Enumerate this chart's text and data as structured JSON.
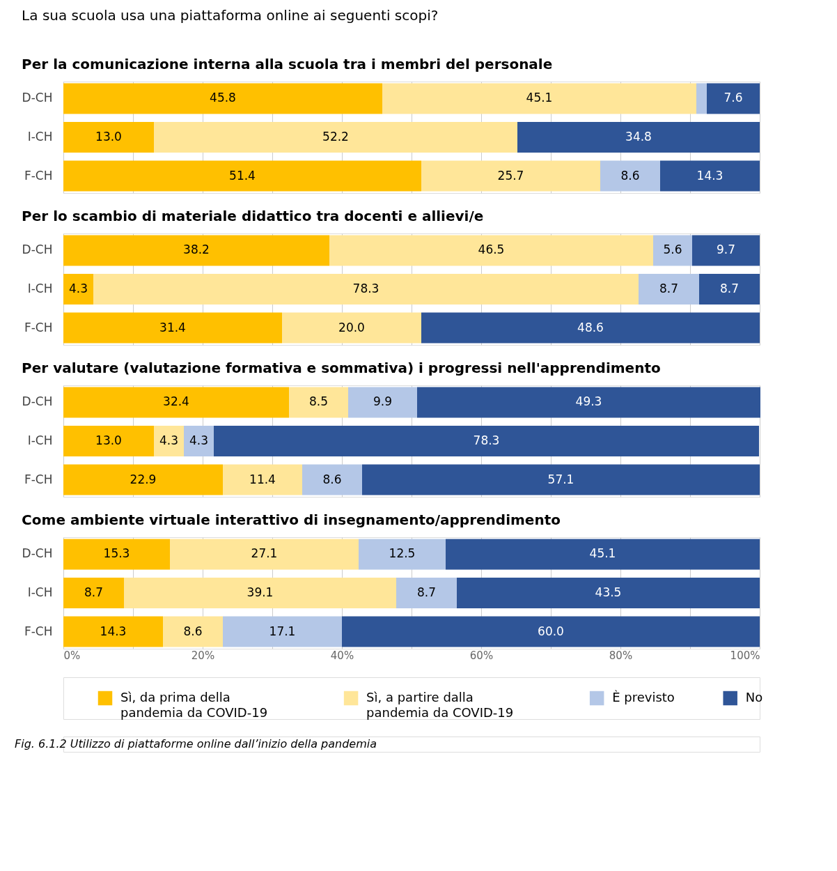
{
  "chart_data": [
    {
      "type": "bar",
      "orientation": "horizontal",
      "stacked": true,
      "title": "La sua scuola usa una piattaforma online ai seguenti scopi?",
      "subtitle": "Per la comunicazione interna alla scuola tra i membri del personale",
      "categories": [
        "D-CH",
        "I-CH",
        "F-CH"
      ],
      "xlim": [
        0,
        100
      ],
      "xticks": [
        0,
        10,
        20,
        30,
        40,
        50,
        60,
        70,
        80,
        90,
        100
      ],
      "grid": "x",
      "tick_labels": "y",
      "legend": "bottom",
      "series": [
        {
          "name": "Sì, da prima della pandemia da COVID-19",
          "color": "#ffc000",
          "values": [
            45.8,
            13.0,
            51.4
          ],
          "value_labels": [
            "45.8",
            "13.0",
            "51.4"
          ]
        },
        {
          "name": "Sì, a partire dalla pandemia da COVID-19",
          "color": "#ffe699",
          "values": [
            45.1,
            52.2,
            25.7
          ],
          "value_labels": [
            "45.1",
            "52.2",
            "25.7"
          ]
        },
        {
          "name": "È previsto",
          "color": "#b4c7e7",
          "values": [
            1.5,
            null,
            8.6
          ],
          "value_labels": [
            null,
            null,
            "8.6"
          ]
        },
        {
          "name": "No",
          "color": "#2f5597",
          "values": [
            7.6,
            34.8,
            14.3
          ],
          "value_labels": [
            "7.6",
            "34.8",
            "14.3"
          ]
        }
      ]
    },
    {
      "type": "bar",
      "orientation": "horizontal",
      "stacked": true,
      "title": "Per lo scambio di materiale didattico tra docenti e allievi/e",
      "categories": [
        "D-CH",
        "I-CH",
        "F-CH"
      ],
      "xlim": [
        0,
        100
      ],
      "xticks": [
        0,
        10,
        20,
        30,
        40,
        50,
        60,
        70,
        80,
        90,
        100
      ],
      "grid": "x",
      "tick_labels": "y",
      "series": [
        {
          "color": "#ffc000",
          "values": [
            38.2,
            4.3,
            31.4
          ],
          "value_labels": [
            "38.2",
            "4.3",
            "31.4"
          ]
        },
        {
          "color": "#ffe699",
          "values": [
            46.5,
            78.3,
            20.0
          ],
          "value_labels": [
            "46.5",
            "78.3",
            "20.0"
          ]
        },
        {
          "color": "#b4c7e7",
          "values": [
            5.6,
            8.7,
            null
          ],
          "value_labels": [
            "5.6",
            "8.7",
            null
          ]
        },
        {
          "color": "#2f5597",
          "values": [
            9.7,
            8.7,
            48.6
          ],
          "value_labels": [
            "9.7",
            "8.7",
            "48.6"
          ]
        }
      ]
    },
    {
      "type": "bar",
      "orientation": "horizontal",
      "stacked": true,
      "title": "Per valutare (valutazione formativa e sommativa) i progressi nell'apprendimento",
      "categories": [
        "D-CH",
        "I-CH",
        "F-CH"
      ],
      "xlim": [
        0,
        100
      ],
      "xticks": [
        0,
        10,
        20,
        30,
        40,
        50,
        60,
        70,
        80,
        90,
        100
      ],
      "grid": "x",
      "tick_labels": "y",
      "series": [
        {
          "color": "#ffc000",
          "values": [
            32.4,
            13.0,
            22.9
          ],
          "value_labels": [
            "32.4",
            "13.0",
            "22.9"
          ]
        },
        {
          "color": "#ffe699",
          "values": [
            8.5,
            4.3,
            11.4
          ],
          "value_labels": [
            "8.5",
            "4.3",
            "11.4"
          ]
        },
        {
          "color": "#b4c7e7",
          "values": [
            9.9,
            4.3,
            8.6
          ],
          "value_labels": [
            "9.9",
            "4.3",
            "8.6"
          ]
        },
        {
          "color": "#2f5597",
          "values": [
            49.3,
            78.3,
            57.1
          ],
          "value_labels": [
            "49.3",
            "78.3",
            "57.1"
          ]
        }
      ]
    },
    {
      "type": "bar",
      "orientation": "horizontal",
      "stacked": true,
      "title": "Come ambiente virtuale interattivo di insegnamento/apprendimento",
      "categories": [
        "D-CH",
        "I-CH",
        "F-CH"
      ],
      "xlim": [
        0,
        100
      ],
      "xticks": [
        {
          "value": 0,
          "label": "0%"
        },
        {
          "value": 10,
          "label": null
        },
        {
          "value": 20,
          "label": "20%"
        },
        {
          "value": 30,
          "label": null
        },
        {
          "value": 40,
          "label": "40%"
        },
        {
          "value": 50,
          "label": null
        },
        {
          "value": 60,
          "label": "60%"
        },
        {
          "value": 70,
          "label": null
        },
        {
          "value": 80,
          "label": "80%"
        },
        {
          "value": 90,
          "label": null
        },
        {
          "value": 100,
          "label": "100%"
        }
      ],
      "grid": "x",
      "annotations": [
        "Fig. 6.1.2 Utilizzo di piattaforme online dall’inizio della pandemia"
      ],
      "series": [
        {
          "color": "#ffc000",
          "values": [
            15.3,
            8.7,
            14.3
          ],
          "value_labels": [
            "15.3",
            "8.7",
            "14.3"
          ]
        },
        {
          "color": "#ffe699",
          "values": [
            27.1,
            39.1,
            8.6
          ],
          "value_labels": [
            "27.1",
            "39.1",
            "8.6"
          ]
        },
        {
          "color": "#b4c7e7",
          "values": [
            12.5,
            8.7,
            17.1
          ],
          "value_labels": [
            "12.5",
            "8.7",
            "17.1"
          ]
        },
        {
          "color": "#2f5597",
          "values": [
            45.1,
            43.5,
            60.0
          ],
          "value_labels": [
            "45.1",
            "43.5",
            "60.0"
          ]
        }
      ]
    }
  ]
}
